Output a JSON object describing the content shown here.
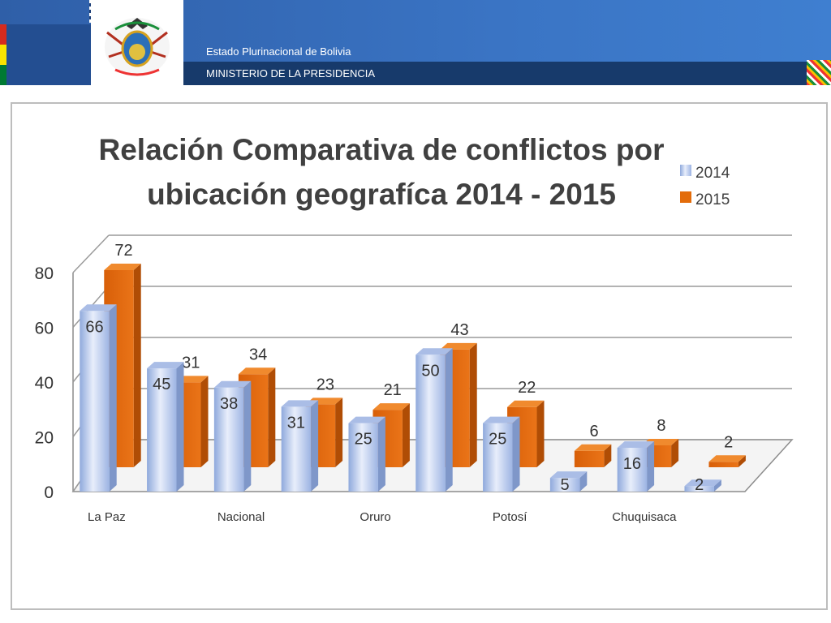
{
  "header": {
    "country": "Estado Plurinacional de Bolivia",
    "ministry": "MINISTERIO DE LA PRESIDENCIA",
    "emblem_icon": "bolivia-coat-of-arms-icon"
  },
  "colors": {
    "header_blue": "#3a74c4",
    "header_band": "#173a6b",
    "series_2014": "#b7c9ec",
    "series_2015": "#e36c0a"
  },
  "chart_data": {
    "type": "bar",
    "title": "Relación Comparativa de conflictos por ubicación geografíca 2014 - 2015",
    "title_lines": [
      "Relación Comparativa de conflictos por",
      "ubicación geografíca 2014 - 2015"
    ],
    "categories": [
      "La Paz",
      "",
      "Nacional",
      "",
      "Oruro",
      "",
      "Potosí",
      "",
      "Chuquisaca",
      ""
    ],
    "x_tick_labels": [
      "La Paz",
      "Nacional",
      "Oruro",
      "Potosí",
      "Chuquisaca"
    ],
    "series": [
      {
        "name": "2014",
        "values": [
          66,
          45,
          38,
          31,
          25,
          50,
          25,
          5,
          16,
          2
        ]
      },
      {
        "name": "2015",
        "values": [
          72,
          31,
          34,
          23,
          21,
          43,
          22,
          6,
          8,
          2
        ]
      }
    ],
    "ylim": [
      0,
      80
    ],
    "yticks": [
      0,
      20,
      40,
      60,
      80
    ],
    "grid": true,
    "legend_position": "top-right",
    "style": "3d-clustered-bar"
  }
}
